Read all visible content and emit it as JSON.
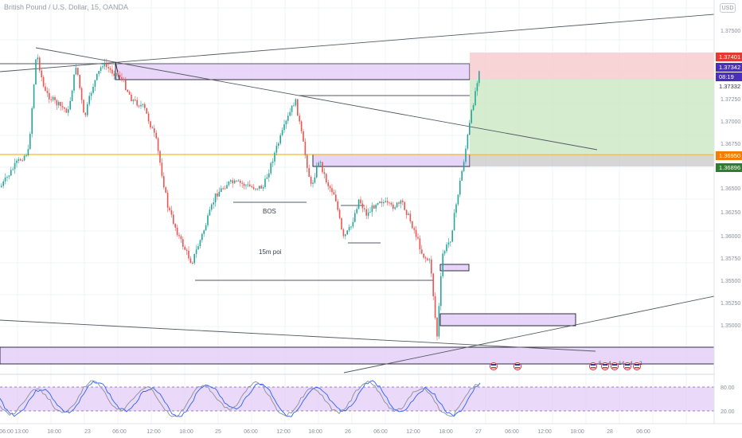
{
  "header": {
    "title": "British Pound / U.S. Dollar, 15, OANDA",
    "currency_button": "USD"
  },
  "colors": {
    "bull": "#26a69a",
    "bear": "#ef5350",
    "zone_fill": "#e1c9f7",
    "zone_stroke": "#1a1a2e",
    "orange_line": "#f7a600",
    "stop_fill": "#f8c9cc",
    "target_fill": "#cbe7c2",
    "badge_red": "#e53935",
    "badge_purple": "#4a2fbf",
    "badge_orange": "#f57c00",
    "badge_green": "#2e7d32"
  },
  "price_axis": {
    "ticks": [
      "1.37500",
      "1.37250",
      "1.37000",
      "1.36750",
      "1.36500",
      "1.36250",
      "1.36000",
      "1.35750",
      "1.35500",
      "1.35250",
      "1.35000"
    ],
    "badges": [
      {
        "label": "1.37401",
        "color": "badge_red"
      },
      {
        "label": "1.37342",
        "color": "badge_purple"
      },
      {
        "label": "08:19",
        "color": "badge_purple"
      },
      {
        "label": "1.37332",
        "color": "plain"
      },
      {
        "label": "1.36950",
        "color": "badge_orange"
      },
      {
        "label": "1.36896",
        "color": "badge_green"
      }
    ]
  },
  "oscillator_axis": {
    "ticks": [
      "80.00",
      "20.00"
    ]
  },
  "time_axis": {
    "labels": [
      "06:00",
      "13:00",
      "18:00",
      "23",
      "06:00",
      "12:00",
      "18:00",
      "25",
      "06:00",
      "12:00",
      "18:00",
      "26",
      "06:00",
      "12:00",
      "18:00",
      "27",
      "06:00",
      "12:00",
      "18:00",
      "28",
      "06:00"
    ]
  },
  "annotations": {
    "bos": "BOS",
    "poi": "15m poi"
  },
  "events": [
    "5",
    "4",
    "14",
    "4",
    "2"
  ]
}
